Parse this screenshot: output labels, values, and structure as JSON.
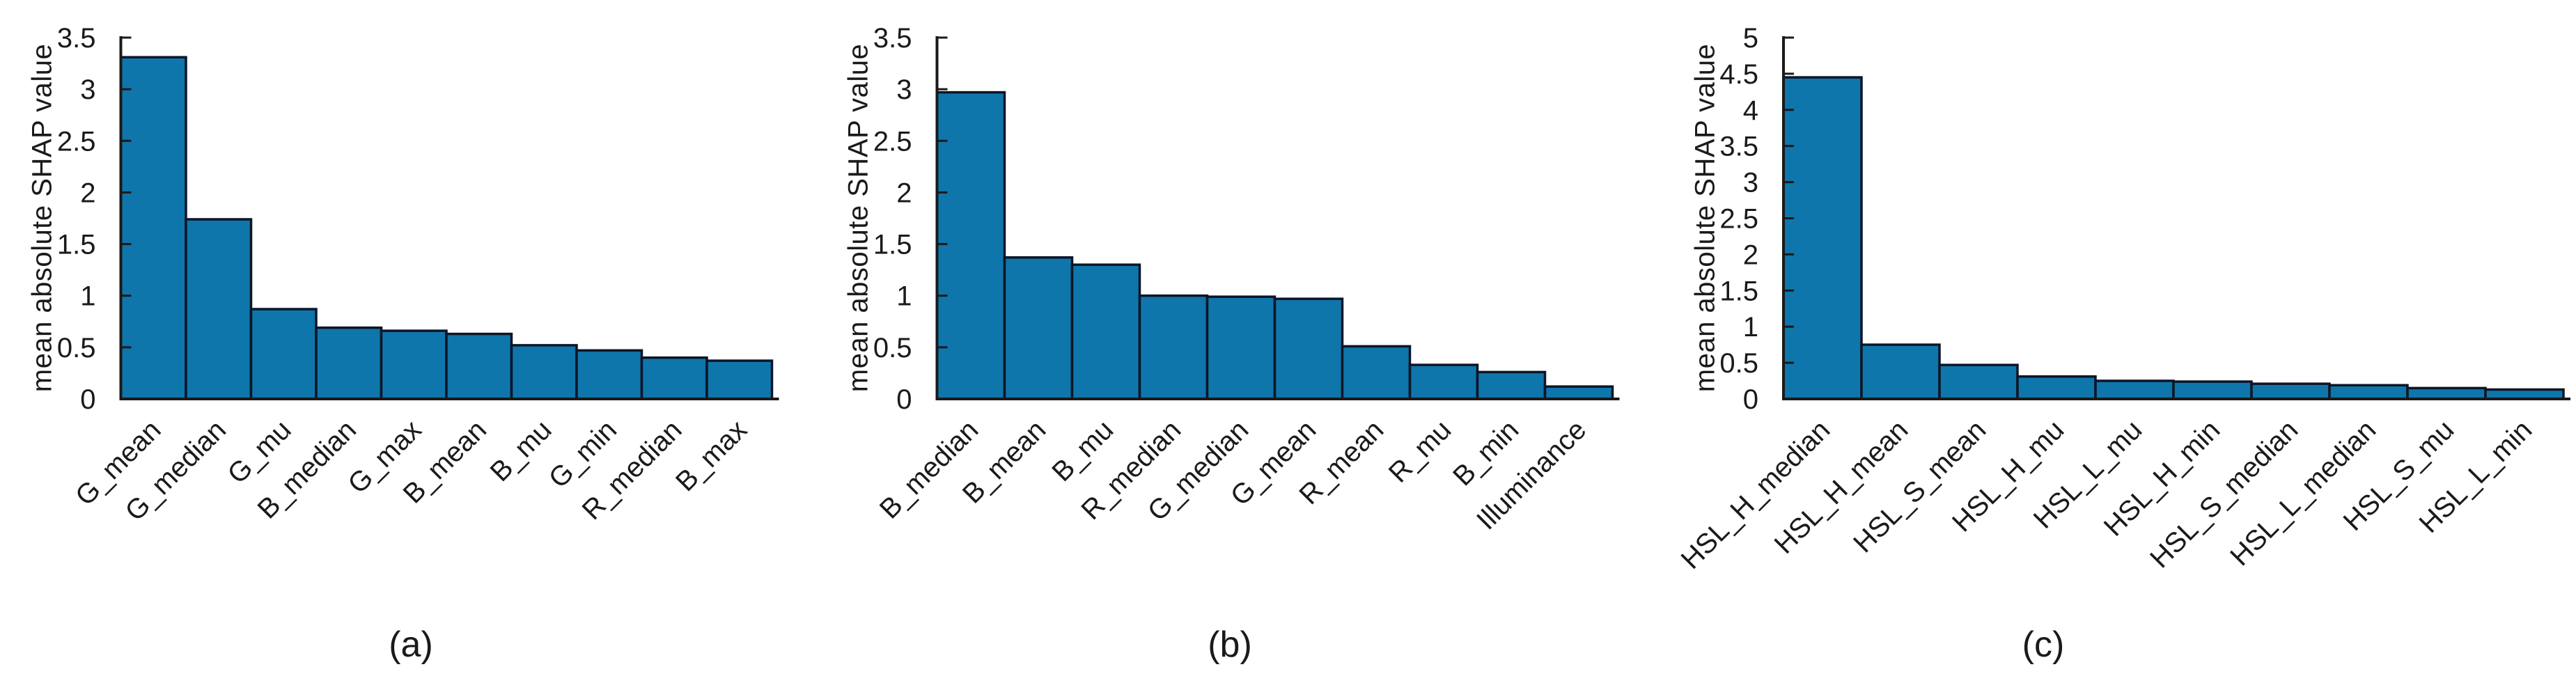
{
  "figure": {
    "background": "#ffffff",
    "bar_fill": "#0e76ab",
    "bar_edge": "#0d1526",
    "axis_color": "#1a1a1a",
    "text_color": "#1a1a1a"
  },
  "chart_data": [
    {
      "type": "bar",
      "caption": "(a)",
      "ylabel": "mean absolute SHAP value",
      "ylim": [
        0,
        3.5
      ],
      "ytick_step": 0.5,
      "ytick_labels": [
        "0",
        "0.5",
        "1",
        "1.5",
        "2",
        "2.5",
        "3",
        "3.5"
      ],
      "grid": false,
      "legend": false,
      "categories": [
        "G_mean",
        "G_median",
        "G_mu",
        "B_median",
        "G_max",
        "B_mean",
        "B_mu",
        "G_min",
        "R_median",
        "B_max"
      ],
      "values": [
        3.31,
        1.74,
        0.87,
        0.69,
        0.66,
        0.63,
        0.52,
        0.47,
        0.4,
        0.37
      ]
    },
    {
      "type": "bar",
      "caption": "(b)",
      "ylabel": "mean absolute SHAP value",
      "ylim": [
        0,
        3.5
      ],
      "ytick_step": 0.5,
      "ytick_labels": [
        "0",
        "0.5",
        "1",
        "1.5",
        "2",
        "2.5",
        "3",
        "3.5"
      ],
      "grid": false,
      "legend": false,
      "categories": [
        "B_median",
        "B_mean",
        "B_mu",
        "R_median",
        "G_median",
        "G_mean",
        "R_mean",
        "R_mu",
        "B_min",
        "Illuminance"
      ],
      "values": [
        2.97,
        1.37,
        1.3,
        1.0,
        0.99,
        0.97,
        0.51,
        0.33,
        0.26,
        0.12
      ]
    },
    {
      "type": "bar",
      "caption": "(c)",
      "ylabel": "mean absolute SHAP value",
      "ylim": [
        0,
        5
      ],
      "ytick_step": 0.5,
      "ytick_labels": [
        "0",
        "0.5",
        "1",
        "1.5",
        "2",
        "2.5",
        "3",
        "3.5",
        "4",
        "4.5",
        "5"
      ],
      "grid": false,
      "legend": false,
      "categories": [
        "HSL_H_median",
        "HSL_H_mean",
        "HSL_S_mean",
        "HSL_H_mu",
        "HSL_L_mu",
        "HSL_H_min",
        "HSL_S_median",
        "HSL_L_median",
        "HSL_S_mu",
        "HSL_L_min"
      ],
      "values": [
        4.45,
        0.75,
        0.47,
        0.31,
        0.25,
        0.24,
        0.21,
        0.19,
        0.15,
        0.13
      ]
    }
  ]
}
